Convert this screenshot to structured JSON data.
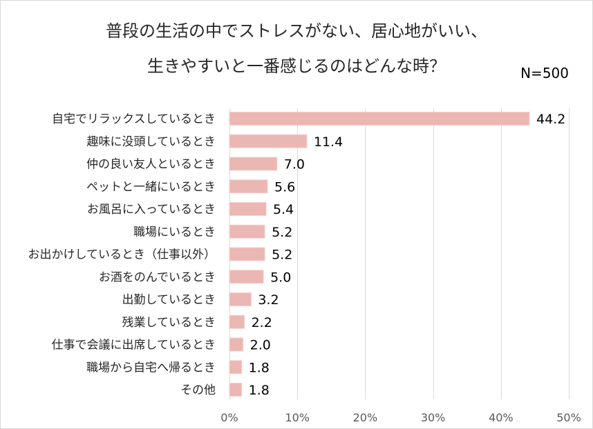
{
  "chart_data": {
    "type": "bar",
    "orientation": "horizontal",
    "title_lines": [
      "普段の生活の中でストレスがない、居心地がいい、",
      "生きやすいと一番感じるのはどんな時？"
    ],
    "sample_size": "N=500",
    "categories": [
      "自宅でリラックスしているとき",
      "趣味に没頭しているとき",
      "仲の良い友人といるとき",
      "ペットと一緒にいるとき",
      "お風呂に入っているとき",
      "職場にいるとき",
      "お出かけしているとき（仕事以外）",
      "お酒をのんでいるとき",
      "出勤しているとき",
      "残業しているとき",
      "仕事で会議に出席しているとき",
      "職場から自宅へ帰るとき",
      "その他"
    ],
    "values": [
      44.2,
      11.4,
      7.0,
      5.6,
      5.4,
      5.2,
      5.2,
      5.0,
      3.2,
      2.2,
      2.0,
      1.8,
      1.8
    ],
    "value_labels": [
      "44.2",
      "11.4",
      "7.0",
      "5.6",
      "5.4",
      "5.2",
      "5.2",
      "5.0",
      "3.2",
      "2.2",
      "2.0",
      "1.8",
      "1.8"
    ],
    "xlim": [
      0,
      50
    ],
    "xticks": [
      0,
      10,
      20,
      30,
      40,
      50
    ],
    "xtick_labels": [
      "0%",
      "10%",
      "20%",
      "30%",
      "40%",
      "50%"
    ],
    "grid": true,
    "colors": {
      "bar_fill": "#ebb7b3",
      "bar_stroke": "#f3d1ce",
      "grid": "#d9d9d9",
      "title": "#262626"
    }
  }
}
